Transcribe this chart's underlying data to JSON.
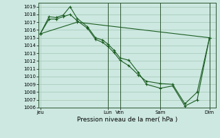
{
  "background_color": "#cce8e0",
  "grid_color": "#aaccbb",
  "line_color": "#1a5c20",
  "marker": "+",
  "xlabel": "Pression niveau de la mer( hPa )",
  "ylim": [
    1006,
    1019.5
  ],
  "yticks": [
    1006,
    1007,
    1008,
    1009,
    1010,
    1011,
    1012,
    1013,
    1014,
    1015,
    1016,
    1017,
    1018,
    1019
  ],
  "xtick_labels": [
    "Jeu",
    "Lun",
    "Ven",
    "Sam",
    "Dim"
  ],
  "xtick_positions": [
    0.0,
    0.385,
    0.455,
    0.685,
    0.965
  ],
  "vline_positions": [
    0.385,
    0.455,
    0.685,
    0.965
  ],
  "series1_x": [
    0.0,
    0.05,
    0.09,
    0.13,
    0.17,
    0.21,
    0.27,
    0.315,
    0.355,
    0.385,
    0.42,
    0.455,
    0.505,
    0.56,
    0.605,
    0.685,
    0.755,
    0.825,
    0.895,
    0.965
  ],
  "series1_y": [
    1015.5,
    1017.7,
    1017.6,
    1017.9,
    1019.0,
    1017.5,
    1016.4,
    1015.0,
    1014.7,
    1014.2,
    1013.4,
    1012.4,
    1012.1,
    1010.5,
    1009.0,
    1008.5,
    1008.8,
    1006.2,
    1007.0,
    1015.0
  ],
  "series2_x": [
    0.0,
    0.05,
    0.09,
    0.13,
    0.17,
    0.21,
    0.27,
    0.315,
    0.355,
    0.385,
    0.42,
    0.455,
    0.505,
    0.56,
    0.605,
    0.685,
    0.755,
    0.825,
    0.895,
    0.965
  ],
  "series2_y": [
    1015.5,
    1017.4,
    1017.4,
    1017.7,
    1018.0,
    1017.2,
    1016.2,
    1014.8,
    1014.4,
    1013.9,
    1013.1,
    1012.1,
    1011.4,
    1010.2,
    1009.4,
    1009.1,
    1009.0,
    1006.5,
    1008.0,
    1015.0
  ],
  "series3_x": [
    0.0,
    0.21,
    0.965
  ],
  "series3_y": [
    1015.5,
    1017.0,
    1015.0
  ],
  "vline_color": "#2a5530",
  "tick_fontsize": 5.0,
  "xlabel_fontsize": 6.5
}
